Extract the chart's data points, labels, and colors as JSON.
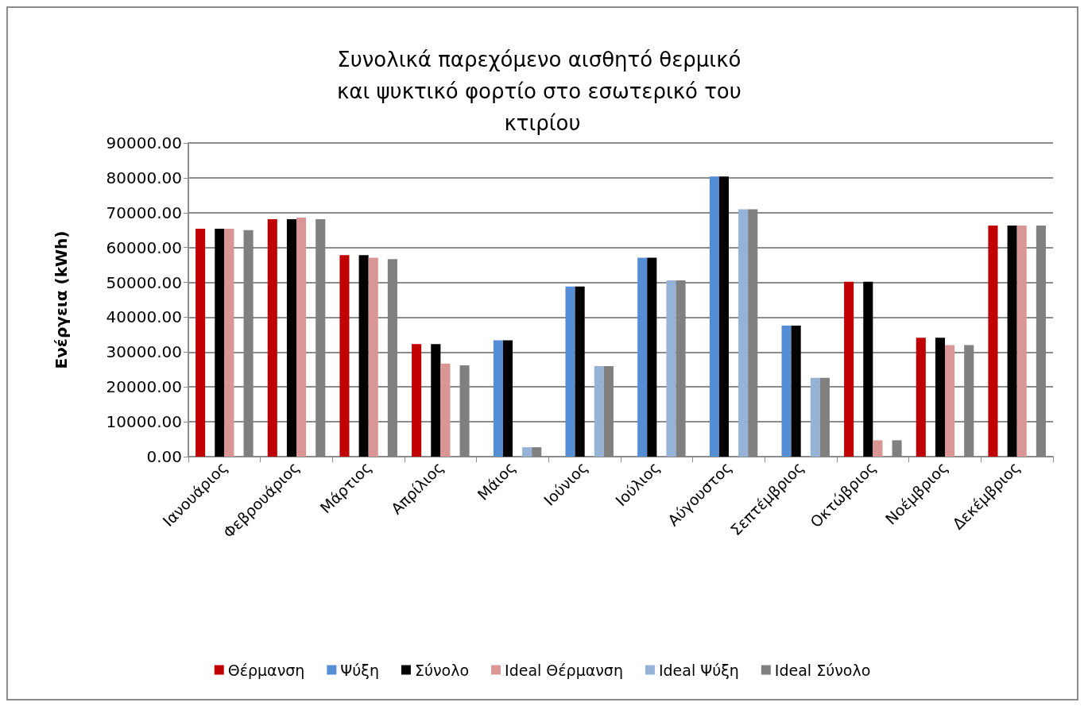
{
  "chart_data": {
    "type": "bar",
    "title": "Συνολικά παρεχόμενο αισθητό θερμικό και ψυκτικό φορτίο στο εσωτερικό του κτιρίου",
    "ylabel": "Ενέργεια (kWh)",
    "categories": [
      "Ιανουάριος",
      "Φεβρουάριος",
      "Μάρτιος",
      "Απρίλιος",
      "Μάιος",
      "Ιούνιος",
      "Ιούλιος",
      "Αύγουστος",
      "Σεπτέμβριος",
      "Οκτώβριος",
      "Νοέμβριος",
      "Δεκέμβριος"
    ],
    "series": [
      {
        "name": "Θέρμανση",
        "color": "#c00000",
        "values": [
          65400,
          68100,
          57800,
          32300,
          null,
          null,
          null,
          null,
          null,
          50200,
          34100,
          66300
        ]
      },
      {
        "name": "Ψύξη",
        "color": "#558ed5",
        "values": [
          null,
          null,
          null,
          null,
          33400,
          48800,
          57100,
          80400,
          37600,
          null,
          null,
          null
        ]
      },
      {
        "name": "Σύνολο",
        "color": "#000000",
        "values": [
          65400,
          68100,
          57800,
          32300,
          33400,
          48800,
          57100,
          80400,
          37600,
          50200,
          34100,
          66300
        ]
      },
      {
        "name": "Ideal Θέρμανση",
        "color": "#d99694",
        "values": [
          65400,
          68600,
          57100,
          26700,
          null,
          null,
          null,
          null,
          null,
          4700,
          32000,
          66300
        ]
      },
      {
        "name": "Ideal Ψύξη",
        "color": "#95b3d7",
        "values": [
          null,
          null,
          null,
          null,
          2700,
          26000,
          50600,
          71000,
          22600,
          null,
          null,
          null
        ]
      },
      {
        "name": "Ideal Σύνολο",
        "color": "#808080",
        "values": [
          65000,
          68100,
          56700,
          26200,
          2700,
          26000,
          50600,
          71000,
          22600,
          4700,
          32000,
          66300
        ]
      }
    ],
    "ylim": [
      0,
      90000
    ],
    "yticks": [
      {
        "value": 0,
        "label": "0.00"
      },
      {
        "value": 10000,
        "label": "10000.00"
      },
      {
        "value": 20000,
        "label": "20000.00"
      },
      {
        "value": 30000,
        "label": "30000.00"
      },
      {
        "value": 40000,
        "label": "40000.00"
      },
      {
        "value": 50000,
        "label": "50000.00"
      },
      {
        "value": 60000,
        "label": "60000.00"
      },
      {
        "value": 70000,
        "label": "70000.00"
      },
      {
        "value": 80000,
        "label": "80000.00"
      },
      {
        "value": 90000,
        "label": "90000.00"
      }
    ],
    "grid": "y",
    "legend": "bottom"
  }
}
